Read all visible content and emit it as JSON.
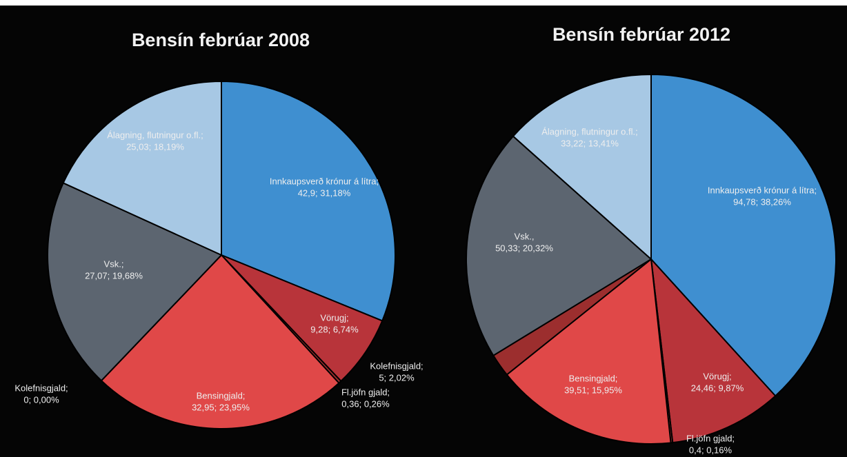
{
  "chart_data": [
    {
      "type": "pie",
      "title": "Bensín febrúar 2008",
      "categories": [
        "Innkaupsverð krónur á lítra;",
        "Vörugj;",
        "Fl.jöfn gjald;",
        "Bensingjald;",
        "Kolefnisgjald;",
        "Vsk.;",
        "Álagning, flutningur o.fl.;"
      ],
      "values": [
        42.9,
        9.28,
        0.36,
        32.95,
        0,
        27.07,
        25.03
      ],
      "value_labels": [
        "42,9; 31,18%",
        "9,28; 6,74%",
        "0,36; 0,26%",
        "32,95; 23,95%",
        "0; 0,00%",
        "27,07; 19,68%",
        "25,03; 18,19%"
      ],
      "colors": [
        "#3f8fd0",
        "#b8343a",
        "#a02c2c",
        "#e04848",
        "#9c2e2e",
        "#5c6570",
        "#a7c8e4"
      ]
    },
    {
      "type": "pie",
      "title": "Bensín febrúar 2012",
      "categories": [
        "Innkaupsverð krónur á lítra;",
        "Vörugj;",
        "Fl.jöfn gjald;",
        "Bensingjald;",
        "Kolefnisgjald;",
        "Vsk.,",
        "Álagning, flutningur o.fl.;"
      ],
      "values": [
        94.78,
        24.46,
        0.4,
        39.51,
        5,
        50.33,
        33.22
      ],
      "value_labels": [
        "94,78; 38,26%",
        "24,46; 9,87%",
        "0,4; 0,16%",
        "39,51; 15,95%",
        "5; 2,02%",
        "50,33; 20,32%",
        "33,22; 13,41%"
      ],
      "colors": [
        "#3f8fd0",
        "#b8343a",
        "#a02c2c",
        "#e04848",
        "#9c2e2e",
        "#5c6570",
        "#a7c8e4"
      ]
    }
  ]
}
